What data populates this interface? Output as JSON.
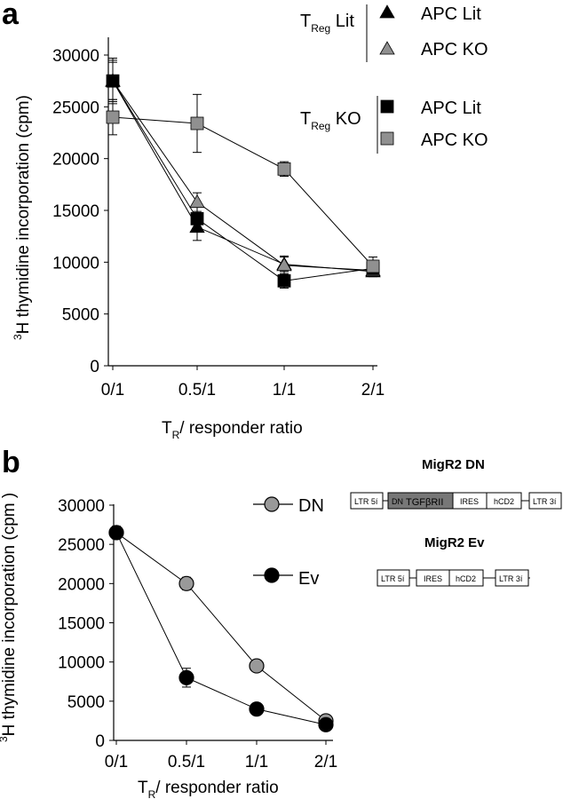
{
  "panel_a_letter": "a",
  "panel_b_letter": "b",
  "chart_data": [
    {
      "type": "line",
      "panel": "a",
      "categories": [
        "0/1",
        "0.5/1",
        "1/1",
        "2/1"
      ],
      "xlabel": "TR/ responder ratio",
      "xlabel_main": "T",
      "xlabel_sub": "R",
      "xlabel_rest": "/ responder ratio",
      "ylabel": "3H thymidine incorporation (cpm)",
      "ylabel_sup": "3",
      "ylabel_rest": "H thymidine incorporation (cpm)",
      "yticks": [
        "0",
        "5000",
        "10000",
        "15000",
        "20000",
        "25000",
        "30000"
      ],
      "ylim": [
        0,
        30000
      ],
      "legend_groups": [
        {
          "main": "T",
          "sub": "Reg",
          "rest": " Lit"
        },
        {
          "main": "T",
          "sub": "Reg",
          "rest": " KO"
        }
      ],
      "series": [
        {
          "name": "APC Lit",
          "group": 0,
          "marker": "triangle",
          "color": "#000000",
          "values": [
            27500,
            13400,
            9800,
            9100
          ],
          "errors": [
            2200,
            1300,
            700,
            500
          ]
        },
        {
          "name": "APC KO",
          "group": 0,
          "marker": "triangle",
          "color": "#909090",
          "values": [
            27500,
            15800,
            9700,
            9200
          ],
          "errors": [
            2000,
            900,
            900,
            500
          ]
        },
        {
          "name": "APC Lit",
          "group": 1,
          "marker": "square",
          "color": "#000000",
          "values": [
            27500,
            14200,
            8200,
            9400
          ],
          "errors": [
            1800,
            1200,
            700,
            700
          ]
        },
        {
          "name": "APC KO",
          "group": 1,
          "marker": "square",
          "color": "#909090",
          "values": [
            24000,
            23400,
            19000,
            9600
          ],
          "errors": [
            1700,
            2800,
            700,
            900
          ]
        }
      ]
    },
    {
      "type": "line",
      "panel": "b",
      "categories": [
        "0/1",
        "0.5/1",
        "1/1",
        "2/1"
      ],
      "xlabel": "TR/ responder ratio",
      "xlabel_main": "T",
      "xlabel_sub": "R",
      "xlabel_rest": "/ responder ratio",
      "ylabel": "3H thymidine incorporation (cpm )",
      "ylabel_sup": "3",
      "ylabel_rest": "H thymidine incorporation (cpm )",
      "yticks": [
        "0",
        "5000",
        "10000",
        "15000",
        "20000",
        "25000",
        "30000"
      ],
      "ylim": [
        0,
        30000
      ],
      "series": [
        {
          "name": "DN",
          "marker": "circle",
          "color": "#999999",
          "values": [
            26500,
            20000,
            9500,
            2500
          ],
          "errors": [
            800,
            800,
            500,
            600
          ]
        },
        {
          "name": "Ev",
          "marker": "circle",
          "color": "#000000",
          "values": [
            26500,
            8000,
            4000,
            2000
          ],
          "errors": [
            800,
            1200,
            300,
            300
          ]
        }
      ]
    }
  ],
  "diagram": {
    "dn_title": "MigR2 DN",
    "ev_title": "MigR2  Ev",
    "dn_boxes": {
      "ltr5": "LTR 5í",
      "dn_small": "DN",
      "tgf": "TGFβRII",
      "ires": "IRES",
      "hcd2": "hCD2",
      "ltr3": "LTR 3í"
    },
    "ev_boxes": {
      "ltr5": "LTR 5í",
      "ires": "IRES",
      "hcd2": "hCD2",
      "ltr3": "LTR 3í"
    },
    "tgf_fill": "#777777"
  }
}
